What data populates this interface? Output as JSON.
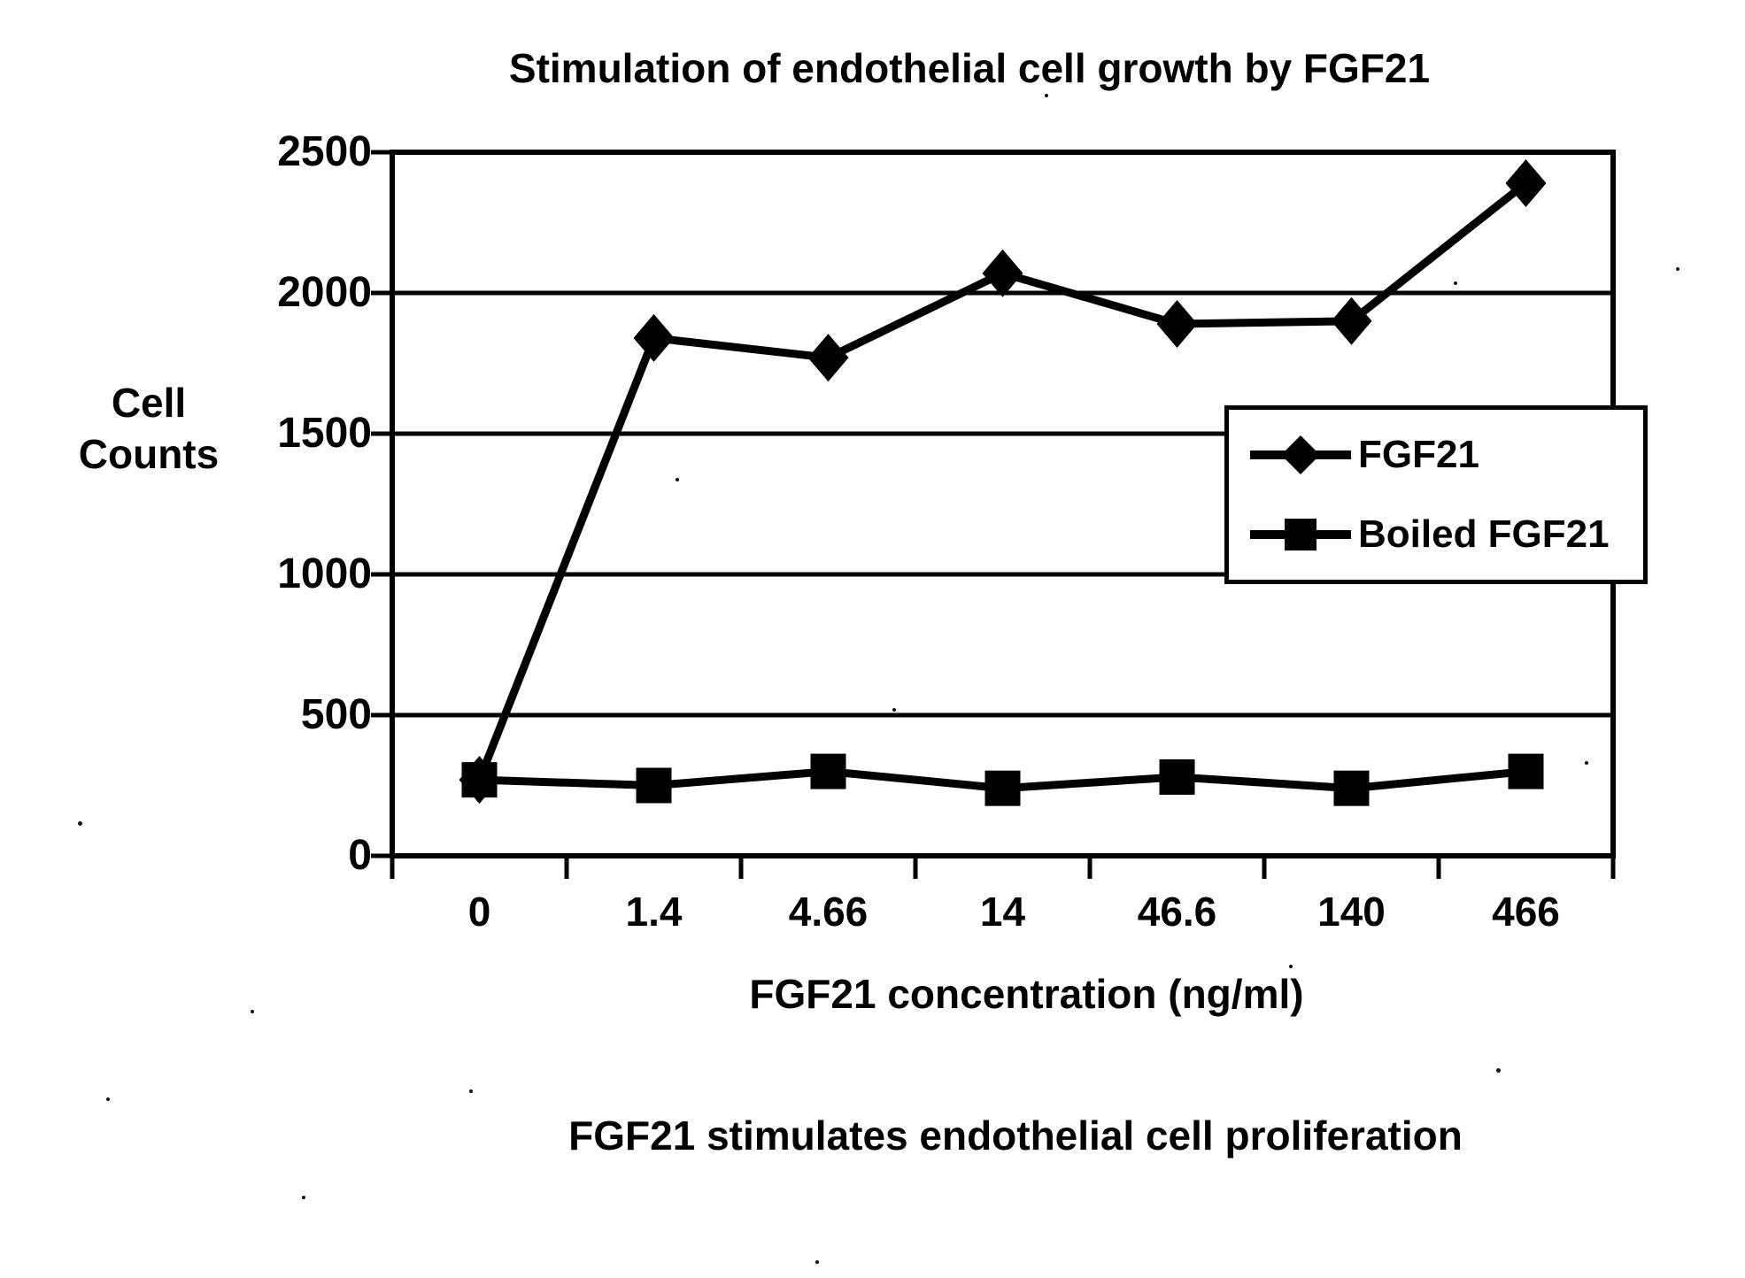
{
  "figure": {
    "caption": "FGF21 stimulates endothelial cell proliferation"
  },
  "chart_data": {
    "type": "line",
    "title": "Stimulation of endothelial cell growth by FGF21",
    "xlabel": "FGF21 concentration (ng/ml)",
    "ylabel": "Cell Counts",
    "categories": [
      "0",
      "1.4",
      "4.66",
      "14",
      "46.6",
      "140",
      "466"
    ],
    "series": [
      {
        "name": "FGF21",
        "marker": "diamond",
        "values": [
          270,
          1840,
          1770,
          2070,
          1890,
          1900,
          2390
        ]
      },
      {
        "name": "Boiled FGF21",
        "marker": "square",
        "values": [
          270,
          250,
          300,
          240,
          280,
          240,
          300
        ]
      }
    ],
    "ylim": [
      0,
      2500
    ],
    "yticks": [
      0,
      500,
      1000,
      1500,
      2000,
      2500
    ],
    "grid": true,
    "legend_position": "right-inside",
    "ink_color": "#000000",
    "background_color": "#ffffff"
  }
}
